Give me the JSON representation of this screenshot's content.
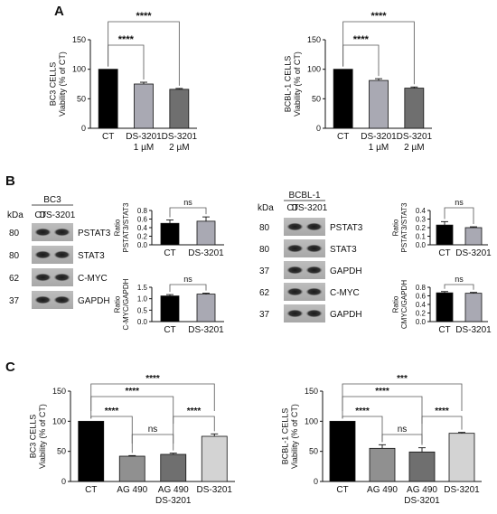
{
  "panels": [
    {
      "letter": "A"
    },
    {
      "letter": "B"
    },
    {
      "letter": "C"
    }
  ],
  "blots": {
    "left": {
      "title": "BC3",
      "kda_label": "kDa",
      "lanes": [
        "CT",
        "DS-3201"
      ],
      "rows": [
        {
          "kda": "80",
          "label": "PSTAT3"
        },
        {
          "kda": "80",
          "label": "STAT3"
        },
        {
          "kda": "62",
          "label": "C-MYC"
        },
        {
          "kda": "37",
          "label": "GAPDH"
        }
      ]
    },
    "right": {
      "title": "BCBL-1",
      "kda_label": "kDa",
      "lanes": [
        "CT",
        "DS-3201"
      ],
      "rows": [
        {
          "kda": "80",
          "label": "PSTAT3"
        },
        {
          "kda": "80",
          "label": "STAT3"
        },
        {
          "kda": "37",
          "label": "GAPDH"
        },
        {
          "kda": "62",
          "label": "C-MYC"
        },
        {
          "kda": "37",
          "label": "GAPDH"
        }
      ]
    }
  },
  "chart_data": [
    {
      "id": "A-left",
      "type": "bar",
      "ylabel": [
        "BC3 CELLS",
        "Viability (% of CT)"
      ],
      "ylim": [
        0,
        150
      ],
      "yticks": [
        0,
        50,
        100,
        150
      ],
      "categories": [
        [
          "CT"
        ],
        [
          "DS-3201",
          "1 µM"
        ],
        [
          "DS-3201",
          "2 µM"
        ]
      ],
      "values": [
        100,
        75,
        66
      ],
      "errors": [
        0,
        3,
        1.5
      ],
      "colors": [
        "#000000",
        "#a9a9b3",
        "#6f6f6f"
      ],
      "significance": [
        {
          "from": 0,
          "to": 1,
          "label": "****"
        },
        {
          "from": 0,
          "to": 2,
          "label": "****"
        }
      ]
    },
    {
      "id": "A-right",
      "type": "bar",
      "ylabel": [
        "BCBL-1 CELLS",
        "Viability (% of CT)"
      ],
      "ylim": [
        0,
        150
      ],
      "yticks": [
        0,
        50,
        100,
        150
      ],
      "categories": [
        [
          "CT"
        ],
        [
          "DS-3201",
          "1 µM"
        ],
        [
          "DS-3201",
          "2 µM"
        ]
      ],
      "values": [
        100,
        81,
        68
      ],
      "errors": [
        0,
        3,
        2
      ],
      "colors": [
        "#000000",
        "#a9a9b3",
        "#6f6f6f"
      ],
      "significance": [
        {
          "from": 0,
          "to": 1,
          "label": "****"
        },
        {
          "from": 0,
          "to": 2,
          "label": "****"
        }
      ]
    },
    {
      "id": "B-left-top",
      "type": "bar",
      "ylabel": [
        "Ratio",
        "PSTAT3/STAT3"
      ],
      "ylim": [
        0,
        0.8
      ],
      "yticks": [
        0.0,
        0.2,
        0.4,
        0.6,
        0.8
      ],
      "tick_decimals": 1,
      "categories": [
        [
          "CT"
        ],
        [
          "DS-3201"
        ]
      ],
      "values": [
        0.5,
        0.55
      ],
      "errors": [
        0.08,
        0.1
      ],
      "colors": [
        "#000000",
        "#a9a9b3"
      ],
      "significance": [
        {
          "from": 0,
          "to": 1,
          "label": "ns"
        }
      ]
    },
    {
      "id": "B-left-bottom",
      "type": "bar",
      "ylabel": [
        "Ratio",
        "C-MYC/GAPDH"
      ],
      "ylim": [
        0,
        1.5
      ],
      "yticks": [
        0.0,
        0.5,
        1.0,
        1.5
      ],
      "tick_decimals": 1,
      "categories": [
        [
          "CT"
        ],
        [
          "DS-3201"
        ]
      ],
      "values": [
        1.12,
        1.2
      ],
      "errors": [
        0.06,
        0.04
      ],
      "colors": [
        "#000000",
        "#a9a9b3"
      ],
      "significance": [
        {
          "from": 0,
          "to": 1,
          "label": "ns"
        }
      ]
    },
    {
      "id": "B-right-top",
      "type": "bar",
      "ylabel": [
        "Ratio",
        "PSTAT3/STAT3"
      ],
      "ylim": [
        0,
        0.4
      ],
      "yticks": [
        0.0,
        0.1,
        0.2,
        0.3,
        0.4
      ],
      "tick_decimals": 1,
      "categories": [
        [
          "CT"
        ],
        [
          "DS-3201"
        ]
      ],
      "values": [
        0.23,
        0.2
      ],
      "errors": [
        0.04,
        0.01
      ],
      "colors": [
        "#000000",
        "#a9a9b3"
      ],
      "significance": [
        {
          "from": 0,
          "to": 1,
          "label": "ns"
        }
      ]
    },
    {
      "id": "B-right-bottom",
      "type": "bar",
      "ylabel": [
        "Ratio",
        "CMYC/GAPDH"
      ],
      "ylim": [
        0,
        0.8
      ],
      "yticks": [
        0.0,
        0.2,
        0.4,
        0.6,
        0.8
      ],
      "tick_decimals": 1,
      "categories": [
        [
          "CT"
        ],
        [
          "DS-3201"
        ]
      ],
      "values": [
        0.67,
        0.66
      ],
      "errors": [
        0.03,
        0.02
      ],
      "colors": [
        "#000000",
        "#a9a9b3"
      ],
      "significance": [
        {
          "from": 0,
          "to": 1,
          "label": "ns"
        }
      ]
    },
    {
      "id": "C-left",
      "type": "bar",
      "ylabel": [
        "BC3 CELLS",
        "Viability (% of CT)"
      ],
      "ylim": [
        0,
        150
      ],
      "yticks": [
        0,
        50,
        100,
        150
      ],
      "categories": [
        [
          "CT"
        ],
        [
          "AG 490"
        ],
        [
          "AG 490",
          "DS-3201"
        ],
        [
          "DS-3201"
        ]
      ],
      "values": [
        100,
        42,
        45,
        75
      ],
      "errors": [
        0,
        1,
        2,
        4
      ],
      "colors": [
        "#000000",
        "#909090",
        "#6f6f6f",
        "#d3d3d3"
      ],
      "significance": [
        {
          "from": 0,
          "to": 1,
          "label": "****",
          "level": 0
        },
        {
          "from": 1,
          "to": 2,
          "label": "ns",
          "level": 1
        },
        {
          "from": 2,
          "to": 3,
          "label": "****",
          "level": 0
        },
        {
          "from": 0,
          "to": 2,
          "label": "****",
          "level": 2
        },
        {
          "from": 0,
          "to": 3,
          "label": "****",
          "level": 3
        }
      ]
    },
    {
      "id": "C-right",
      "type": "bar",
      "ylabel": [
        "BCBL-1 CELLS",
        "Viability (% of CT)"
      ],
      "ylim": [
        0,
        150
      ],
      "yticks": [
        0,
        50,
        100,
        150
      ],
      "categories": [
        [
          "CT"
        ],
        [
          "AG 490"
        ],
        [
          "AG 490",
          "DS-3201"
        ],
        [
          "DS-3201"
        ]
      ],
      "values": [
        100,
        55,
        49,
        80
      ],
      "errors": [
        0,
        6,
        7,
        1.5
      ],
      "colors": [
        "#000000",
        "#909090",
        "#6f6f6f",
        "#d3d3d3"
      ],
      "significance": [
        {
          "from": 0,
          "to": 1,
          "label": "****",
          "level": 0
        },
        {
          "from": 1,
          "to": 2,
          "label": "ns",
          "level": 1
        },
        {
          "from": 2,
          "to": 3,
          "label": "****",
          "level": 0
        },
        {
          "from": 0,
          "to": 2,
          "label": "****",
          "level": 2
        },
        {
          "from": 0,
          "to": 3,
          "label": "***",
          "level": 3
        }
      ]
    }
  ]
}
